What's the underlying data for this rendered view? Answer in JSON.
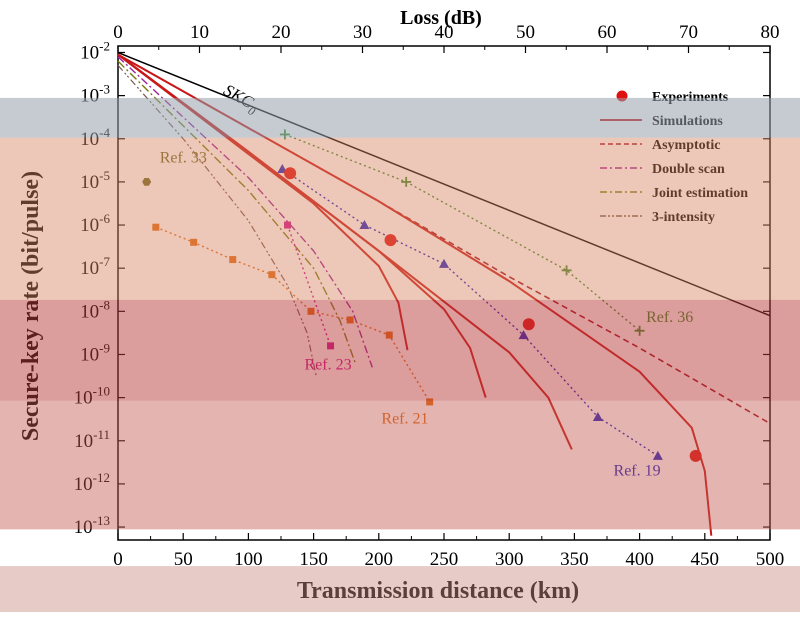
{
  "chart_data": {
    "type": "line",
    "xlabel": "Transmission distance (km)",
    "ylabel": "Secure-key rate (bit/pulse)",
    "top_xlabel": "Loss (dB)",
    "xlim": [
      0,
      500
    ],
    "ylim_exp": [
      -13.3,
      -1.85
    ],
    "yscale": "log",
    "x_ticks": [
      0,
      50,
      100,
      150,
      200,
      250,
      300,
      350,
      400,
      450,
      500
    ],
    "x_tick_labels": [
      "0",
      "50",
      "100",
      "150",
      "200",
      "250",
      "300",
      "350",
      "400",
      "450",
      "500"
    ],
    "top_ticks_db": [
      0,
      10,
      20,
      30,
      40,
      50,
      60,
      70,
      80
    ],
    "top_tick_labels": [
      "0",
      "10",
      "20",
      "30",
      "40",
      "50",
      "60",
      "70",
      "80"
    ],
    "db_per_km": 0.16,
    "y_tick_exps": [
      -2,
      -3,
      -4,
      -5,
      -6,
      -7,
      -8,
      -9,
      -10,
      -11,
      -12,
      -13
    ],
    "y_tick_labels": [
      "10-2",
      "10-3",
      "10-4",
      "10-5",
      "10-6",
      "10-7",
      "10-8",
      "10-9",
      "10-10",
      "10-11",
      "10-12",
      "10-13"
    ],
    "legend": {
      "position": "top-right",
      "items": [
        {
          "label": "Experiments",
          "kind": "marker",
          "color": "#e01010"
        },
        {
          "label": "Simulations",
          "kind": "solid",
          "color": "#c81818"
        },
        {
          "label": "Asymptotic",
          "kind": "dash",
          "color": "#a01020"
        },
        {
          "label": "Double scan",
          "kind": "dashdot",
          "color": "#a0209a"
        },
        {
          "label": "Joint estimation",
          "kind": "dashdot",
          "color": "#7a7a10"
        },
        {
          "label": "3-intensity",
          "kind": "dashdotdot",
          "color": "#7a5a50"
        }
      ]
    },
    "skc_label": "SKC",
    "skc_sub": "0",
    "series": [
      {
        "style": "skc",
        "color": "#000000",
        "x": [
          0,
          500
        ],
        "y_exp": [
          -2.0,
          -8.1
        ]
      },
      {
        "style": "asymptotic",
        "color": "#a01020",
        "x": [
          0,
          100,
          200,
          300,
          400,
          500
        ],
        "y_exp": [
          -2.05,
          -3.75,
          -5.45,
          -7.2,
          -8.85,
          -10.6
        ]
      },
      {
        "style": "simulation",
        "color": "#c81818",
        "x": [
          0,
          50,
          100,
          150,
          200,
          215,
          222
        ],
        "y_exp": [
          -2.05,
          -3.2,
          -4.35,
          -5.5,
          -6.95,
          -7.8,
          -8.9
        ]
      },
      {
        "style": "simulation",
        "color": "#c81818",
        "x": [
          0,
          100,
          200,
          250,
          270,
          282
        ],
        "y_exp": [
          -2.05,
          -4.3,
          -6.6,
          -7.95,
          -8.85,
          -10.0
        ]
      },
      {
        "style": "simulation",
        "color": "#c81818",
        "x": [
          0,
          100,
          200,
          300,
          330,
          348
        ],
        "y_exp": [
          -2.05,
          -4.3,
          -6.6,
          -8.95,
          -10.0,
          -11.2
        ]
      },
      {
        "style": "simulation",
        "color": "#c81818",
        "x": [
          0,
          100,
          200,
          300,
          400,
          440,
          450,
          455
        ],
        "y_exp": [
          -2.05,
          -3.75,
          -5.45,
          -7.3,
          -9.4,
          -10.7,
          -11.7,
          -13.2
        ]
      },
      {
        "style": "doublescan",
        "color": "#a0209a",
        "x": [
          0,
          50,
          100,
          150,
          180,
          195
        ],
        "y_exp": [
          -2.1,
          -3.5,
          -4.9,
          -6.6,
          -8.0,
          -9.3
        ]
      },
      {
        "style": "joint",
        "color": "#7a7a10",
        "x": [
          0,
          50,
          100,
          150,
          170,
          182
        ],
        "y_exp": [
          -2.2,
          -3.7,
          -5.2,
          -7.0,
          -8.2,
          -9.2
        ]
      },
      {
        "style": "three",
        "color": "#7a5a50",
        "x": [
          0,
          50,
          100,
          130,
          145,
          152
        ],
        "y_exp": [
          -2.3,
          -4.0,
          -5.9,
          -7.4,
          -8.5,
          -9.5
        ]
      }
    ],
    "experiments": {
      "color": "#e01010",
      "x": [
        132,
        209,
        315,
        443
      ],
      "y_exp": [
        -4.8,
        -6.35,
        -8.3,
        -11.35
      ]
    },
    "references": [
      {
        "label": "Ref. 33",
        "color": "#6a6a20",
        "marker": "hexagon",
        "line": false,
        "x": [
          22
        ],
        "y_exp": [
          -5.0
        ],
        "label_pos": [
          32,
          -4.55
        ]
      },
      {
        "label": "Ref. 36",
        "color": "#3c8a2c",
        "marker": "plus",
        "line": true,
        "x": [
          128,
          221,
          344,
          400
        ],
        "y_exp": [
          -3.9,
          -5.0,
          -7.05,
          -8.45
        ],
        "label_pos": [
          405,
          -8.25
        ]
      },
      {
        "label": "Ref. 19",
        "color": "#2020c0",
        "marker": "triangle",
        "line": true,
        "x": [
          126,
          189,
          250,
          311,
          368,
          414
        ],
        "y_exp": [
          -4.7,
          -6.0,
          -6.9,
          -8.55,
          -10.45,
          -11.35
        ],
        "label_pos": [
          380,
          -11.8
        ]
      },
      {
        "label": "Ref. 23",
        "color": "#d01090",
        "marker": "square",
        "line": true,
        "x": [
          130,
          163
        ],
        "y_exp": [
          -6.0,
          -8.8
        ],
        "label_pos": [
          143,
          -9.35
        ]
      },
      {
        "label": "Ref. 21",
        "color": "#e06a10",
        "marker": "square",
        "line": true,
        "x": [
          29,
          58,
          88,
          118,
          148,
          178,
          208,
          239
        ],
        "y_exp": [
          -6.05,
          -6.4,
          -6.8,
          -7.15,
          -8.0,
          -8.2,
          -8.55,
          -10.1
        ],
        "label_pos": [
          202,
          -10.6
        ]
      }
    ],
    "overlay_bands": [
      {
        "y_from": 0.16,
        "y_to": 0.225,
        "color": "rgba(150,160,170,0.55)"
      },
      {
        "y_from": 0.225,
        "y_to": 0.49,
        "color": "rgba(215,130,95,0.45)"
      },
      {
        "y_from": 0.49,
        "y_to": 0.655,
        "color": "rgba(185,60,60,0.5)"
      },
      {
        "y_from": 0.655,
        "y_to": 0.865,
        "color": "rgba(195,90,80,0.45)"
      },
      {
        "y_from": 0.925,
        "y_to": 1.0,
        "color": "rgba(200,140,130,0.45)"
      }
    ]
  }
}
